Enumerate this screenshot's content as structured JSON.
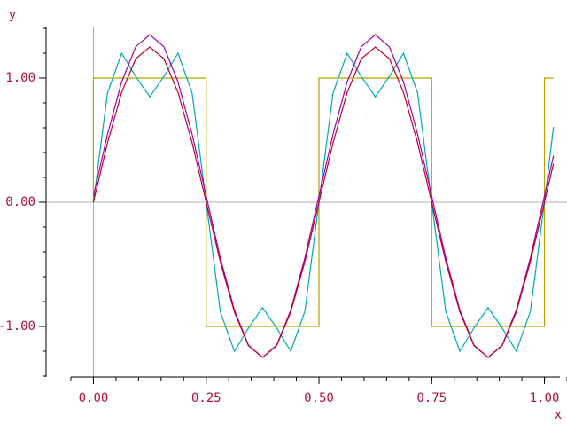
{
  "chart_data": {
    "type": "line",
    "xlabel": "x",
    "ylabel": "y",
    "xlim": [
      -0.05,
      1.05
    ],
    "ylim": [
      -1.4,
      1.4
    ],
    "xticks": [
      {
        "value": 0,
        "label": "0.00"
      },
      {
        "value": 0.25,
        "label": "0.25"
      },
      {
        "value": 0.5,
        "label": "0.50"
      },
      {
        "value": 0.75,
        "label": "0.75"
      },
      {
        "value": 1,
        "label": "1.00"
      }
    ],
    "yticks": [
      {
        "value": -1,
        "label": "-1.00"
      },
      {
        "value": 0,
        "label": "0.00"
      },
      {
        "value": 1,
        "label": "1.00"
      }
    ],
    "xminor_ticks": [
      -0.05,
      0,
      0.05,
      0.1,
      0.15,
      0.2,
      0.25,
      0.3,
      0.35,
      0.4,
      0.45,
      0.5,
      0.55,
      0.6,
      0.65,
      0.7,
      0.75,
      0.8,
      0.85,
      0.9,
      0.95,
      1,
      1.05
    ],
    "yminor_ticks": [
      -1.4,
      -1.2,
      -1,
      -0.8,
      -0.6,
      -0.4,
      -0.2,
      0,
      0.2,
      0.4,
      0.6,
      0.8,
      1,
      1.2,
      1.4
    ],
    "zero_lines": true,
    "series": [
      {
        "color": "#b8a000",
        "x": [
          0,
          0,
          0.25,
          0.25,
          0.5,
          0.5,
          0.75,
          0.75,
          1,
          1,
          1.02
        ],
        "values": [
          0,
          1,
          1,
          -1,
          -1,
          1,
          1,
          -1,
          -1,
          1,
          1
        ]
      },
      {
        "color": "#00a8b4",
        "x": [
          0,
          0.03125,
          0.0625,
          0.09375,
          0.125,
          0.15625,
          0.1875,
          0.21875,
          0.25,
          0.28125,
          0.3125,
          0.34375,
          0.375,
          0.40625,
          0.4375,
          0.46875,
          0.5,
          0.53125,
          0.5625,
          0.59375,
          0.625,
          0.65625,
          0.6875,
          0.71875,
          0.75,
          0.78125,
          0.8125,
          0.84375,
          0.875,
          0.90625,
          0.9375,
          0.96875,
          1,
          1.02
        ],
        "values": [
          0,
          0.88,
          1.2,
          1.013,
          0.849,
          1.013,
          1.2,
          0.88,
          0,
          -0.88,
          -1.2,
          -1.013,
          -0.849,
          -1.013,
          -1.2,
          -0.88,
          0,
          0.88,
          1.2,
          1.013,
          0.849,
          1.013,
          1.2,
          0.88,
          0,
          -0.88,
          -1.2,
          -1.013,
          -0.849,
          -1.013,
          -1.2,
          -0.88,
          0,
          0.607
        ]
      },
      {
        "color": "#a000a8",
        "x": [
          0,
          0.03125,
          0.0625,
          0.09375,
          0.125,
          0.15625,
          0.1875,
          0.21875,
          0.25,
          0.28125,
          0.3125,
          0.34375,
          0.375,
          0.40625,
          0.4375,
          0.46875,
          0.5,
          0.53125,
          0.5625,
          0.59375,
          0.625,
          0.65625,
          0.6875,
          0.71875,
          0.75,
          0.78125,
          0.8125,
          0.84375,
          0.875,
          0.90625,
          0.9375,
          0.96875,
          1,
          1.02
        ],
        "values": [
          0.05,
          0.548,
          0.969,
          1.251,
          1.35,
          1.251,
          0.969,
          0.548,
          0.05,
          -0.448,
          -0.869,
          -1.151,
          -1.25,
          -1.151,
          -0.869,
          -0.448,
          0.05,
          0.548,
          0.969,
          1.251,
          1.35,
          1.251,
          0.969,
          0.548,
          0.05,
          -0.448,
          -0.869,
          -1.151,
          -1.25,
          -1.151,
          -0.869,
          -0.448,
          0.05,
          0.374
        ]
      },
      {
        "color": "#c0002c",
        "x": [
          0,
          0.03125,
          0.0625,
          0.09375,
          0.125,
          0.15625,
          0.1875,
          0.21875,
          0.25,
          0.28125,
          0.3125,
          0.34375,
          0.375,
          0.40625,
          0.4375,
          0.46875,
          0.5,
          0.53125,
          0.5625,
          0.59375,
          0.625,
          0.65625,
          0.6875,
          0.71875,
          0.75,
          0.78125,
          0.8125,
          0.84375,
          0.875,
          0.90625,
          0.9375,
          0.96875,
          1,
          1.02
        ],
        "values": [
          0,
          0.479,
          0.884,
          1.155,
          1.25,
          1.155,
          0.884,
          0.479,
          0,
          -0.479,
          -0.884,
          -1.155,
          -1.25,
          -1.155,
          -0.884,
          -0.479,
          0,
          0.479,
          0.884,
          1.155,
          1.25,
          1.155,
          0.884,
          0.479,
          0,
          -0.479,
          -0.884,
          -1.155,
          -1.25,
          -1.155,
          -0.884,
          -0.479,
          0,
          0.311
        ]
      }
    ]
  }
}
